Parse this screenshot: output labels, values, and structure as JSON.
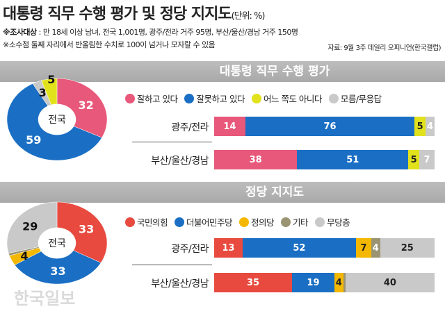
{
  "header": {
    "title": "대통령 직무 수행 평가 및 정당 지지도",
    "unit": "(단위: %)",
    "note1_label": "※조사대상",
    "note1_text": " : 만 18세 이상 남녀, 전국 1,001명, 광주/전라 거주 95명, 부산/울산/경남 거주 150명",
    "note2": "※소수점 둘째 자리에서 반올림한 수치로 100이 넘거나 모자랄 수 있음",
    "source": "자료: 9월 3주 데일리 오피니언(한국갤럽)"
  },
  "watermark": "한국일보",
  "chart_data": [
    {
      "type": "bar",
      "stacked": true,
      "title": "대통령 직무 수행 평가",
      "categories": [
        "광주/전라",
        "부산/울산/경남"
      ],
      "series": [
        {
          "name": "잘하고 있다",
          "color": "#e8587a",
          "values": [
            14,
            38
          ]
        },
        {
          "name": "잘못하고 있다",
          "color": "#1a6fc4",
          "values": [
            76,
            51
          ]
        },
        {
          "name": "어느 쪽도 아니다",
          "color": "#e2e21c",
          "values": [
            5,
            5
          ]
        },
        {
          "name": "모름/무응답",
          "color": "#c9c9c9",
          "values": [
            4,
            7
          ]
        }
      ],
      "pie": {
        "label": "전국",
        "values": [
          32,
          59,
          3,
          5
        ],
        "order": [
          "잘하고 있다",
          "잘못하고 있다",
          "모름/무응답",
          "어느 쪽도 아니다"
        ]
      }
    },
    {
      "type": "bar",
      "stacked": true,
      "title": "정당 지지도",
      "categories": [
        "광주/전라",
        "부산/울산/경남"
      ],
      "series": [
        {
          "name": "국민의힘",
          "color": "#e84a3f",
          "values": [
            13,
            35
          ]
        },
        {
          "name": "더불어민주당",
          "color": "#1a6fc4",
          "values": [
            52,
            19
          ]
        },
        {
          "name": "정의당",
          "color": "#f5b800",
          "values": [
            7,
            4
          ]
        },
        {
          "name": "기타",
          "color": "#9a9473",
          "values": [
            4,
            1
          ]
        },
        {
          "name": "무당층",
          "color": "#c9c9c9",
          "values": [
            25,
            40
          ]
        }
      ],
      "pie": {
        "label": "전국",
        "values": [
          33,
          33,
          4,
          1,
          29
        ],
        "order": [
          "국민의힘",
          "더불어민주당",
          "정의당",
          "기타",
          "무당층"
        ]
      }
    }
  ]
}
